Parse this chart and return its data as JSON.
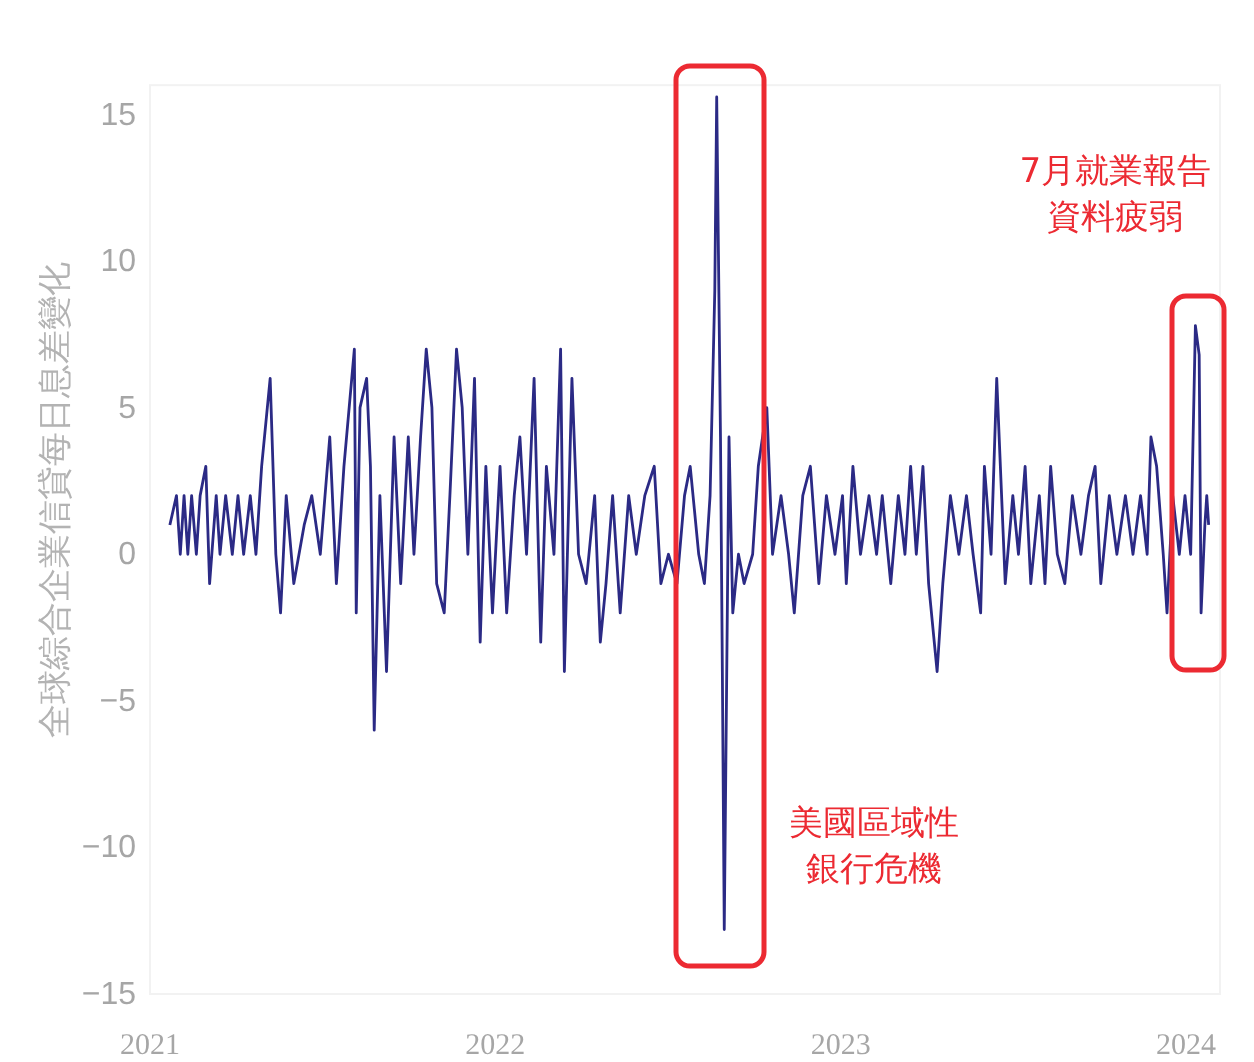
{
  "chart_data": {
    "type": "line",
    "ylabel": "全球綜合企業信貸每日息差變化",
    "xlim": [
      "2021-01-01",
      "2024-02-06"
    ],
    "xticks": [
      "2021",
      "2022",
      "2023",
      "2024"
    ],
    "ylim": [
      -15,
      16
    ],
    "yticks": [
      -15,
      -10,
      -5,
      0,
      5,
      10,
      15
    ],
    "grid": false,
    "series": [
      {
        "color": "#2b2a85",
        "x": [
          "2021-01-22",
          "2021-01-29",
          "2021-02-02",
          "2021-02-06",
          "2021-02-10",
          "2021-02-14",
          "2021-02-19",
          "2021-02-23",
          "2021-03-01",
          "2021-03-05",
          "2021-03-12",
          "2021-03-16",
          "2021-03-22",
          "2021-03-29",
          "2021-04-04",
          "2021-04-10",
          "2021-04-17",
          "2021-04-23",
          "2021-04-29",
          "2021-05-08",
          "2021-05-14",
          "2021-05-19",
          "2021-05-25",
          "2021-06-02",
          "2021-06-13",
          "2021-06-21",
          "2021-06-30",
          "2021-07-10",
          "2021-07-17",
          "2021-07-25",
          "2021-08-05",
          "2021-08-07",
          "2021-08-11",
          "2021-08-18",
          "2021-08-22",
          "2021-08-26",
          "2021-09-01",
          "2021-09-08",
          "2021-09-16",
          "2021-09-23",
          "2021-10-01",
          "2021-10-07",
          "2021-10-14",
          "2021-10-20",
          "2021-10-26",
          "2021-10-31",
          "2021-11-08",
          "2021-11-14",
          "2021-11-21",
          "2021-11-27",
          "2021-12-03",
          "2021-12-10",
          "2021-12-16",
          "2021-12-22",
          "2021-12-29",
          "2022-01-06",
          "2022-01-13",
          "2022-01-21",
          "2022-01-27",
          "2022-02-03",
          "2022-02-11",
          "2022-02-18",
          "2022-02-24",
          "2022-03-04",
          "2022-03-11",
          "2022-03-15",
          "2022-03-23",
          "2022-03-30",
          "2022-04-07",
          "2022-04-16",
          "2022-04-22",
          "2022-04-28",
          "2022-05-05",
          "2022-05-13",
          "2022-05-22",
          "2022-05-30",
          "2022-06-08",
          "2022-06-18",
          "2022-06-25",
          "2022-07-03",
          "2022-07-12",
          "2022-07-20",
          "2022-07-26",
          "2022-08-04",
          "2022-08-10",
          "2022-08-16",
          "2022-08-21",
          "2022-08-23",
          "2022-08-27",
          "2022-08-29",
          "2022-08-31",
          "2022-09-05",
          "2022-09-09",
          "2022-09-15",
          "2022-09-21",
          "2022-09-30",
          "2022-10-06",
          "2022-10-15",
          "2022-10-21",
          "2022-10-30",
          "2022-11-07",
          "2022-11-13",
          "2022-11-22",
          "2022-11-30",
          "2022-12-09",
          "2022-12-17",
          "2022-12-26",
          "2023-01-03",
          "2023-01-07",
          "2023-01-14",
          "2023-01-22",
          "2023-01-31",
          "2023-02-08",
          "2023-02-14",
          "2023-02-23",
          "2023-03-03",
          "2023-03-10",
          "2023-03-16",
          "2023-03-22",
          "2023-03-29",
          "2023-04-04",
          "2023-04-13",
          "2023-04-19",
          "2023-04-27",
          "2023-05-06",
          "2023-05-14",
          "2023-05-21",
          "2023-05-29",
          "2023-06-02",
          "2023-06-09",
          "2023-06-15",
          "2023-06-24",
          "2023-07-02",
          "2023-07-08",
          "2023-07-15",
          "2023-07-21",
          "2023-07-30",
          "2023-08-05",
          "2023-08-11",
          "2023-08-18",
          "2023-08-26",
          "2023-09-03",
          "2023-09-12",
          "2023-09-20",
          "2023-09-27",
          "2023-10-03",
          "2023-10-12",
          "2023-10-20",
          "2023-10-29",
          "2023-11-06",
          "2023-11-14",
          "2023-11-21",
          "2023-11-25",
          "2023-12-01",
          "2023-12-08",
          "2023-12-12",
          "2023-12-18",
          "2023-12-25",
          "2023-12-31",
          "2024-01-06",
          "2024-01-11",
          "2024-01-15",
          "2024-01-17",
          "2024-01-21",
          "2024-01-23",
          "2024-01-25"
        ],
        "values": [
          1,
          2,
          0,
          2,
          0,
          2,
          0,
          2,
          3,
          -1,
          2,
          0,
          2,
          0,
          2,
          0,
          2,
          0,
          3,
          6,
          0,
          -2,
          2,
          -1,
          1,
          2,
          0,
          4,
          -1,
          3,
          7,
          -2,
          5,
          6,
          3,
          -6,
          2,
          -4,
          4,
          -1,
          4,
          0,
          4,
          7,
          5,
          -1,
          -2,
          2,
          7,
          5,
          0,
          6,
          -3,
          3,
          -2,
          3,
          -2,
          2,
          4,
          0,
          6,
          -3,
          3,
          0,
          7,
          -4,
          6,
          0,
          -1,
          2,
          -3,
          -1,
          2,
          -2,
          2,
          0,
          2,
          3,
          -1,
          0,
          -1,
          2,
          3,
          0,
          -1,
          2,
          9,
          15.6,
          4,
          -4,
          -12.8,
          4,
          -2,
          0,
          -1,
          0,
          3,
          5,
          0,
          2,
          0,
          -2,
          2,
          3,
          -1,
          2,
          0,
          2,
          -1,
          3,
          0,
          2,
          0,
          2,
          -1,
          2,
          0,
          3,
          0,
          3,
          -1,
          -4,
          -1,
          2,
          0,
          2,
          0,
          -2,
          3,
          0,
          6,
          -1,
          2,
          0,
          3,
          -1,
          2,
          -1,
          3,
          0,
          -1,
          2,
          0,
          2,
          3,
          -1,
          2,
          0,
          2,
          0,
          2,
          0,
          4,
          3,
          0,
          -2,
          2,
          0,
          2,
          0,
          7.8,
          6.8,
          -2,
          1,
          2,
          1
        ]
      }
    ],
    "annotations": [
      {
        "text": "美國區域性銀行危機",
        "x": "2022-08-31",
        "y": -12.8
      },
      {
        "text": "7月就業報告資料疲弱",
        "x": "2024-01-11",
        "y": 7.8
      }
    ]
  }
}
